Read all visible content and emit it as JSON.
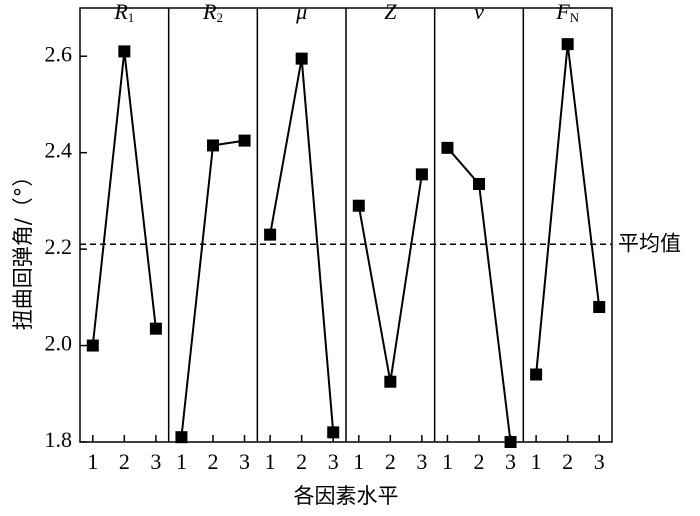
{
  "chart_data": {
    "type": "line",
    "ylabel": "扭曲回弹角/（°）",
    "xlabel": "各因素水平",
    "categories": [
      "1",
      "2",
      "3"
    ],
    "ylim": [
      1.8,
      2.7
    ],
    "yticks": [
      1.8,
      {
        "value": 2,
        "label": "2.0"
      },
      2.2,
      2.4,
      2.6
    ],
    "reference_line": {
      "value": 2.21,
      "label": "平均值"
    },
    "color": "#000000",
    "panels": [
      {
        "symbol": "R",
        "subscript": "1",
        "values": [
          2.0,
          2.61,
          2.035
        ]
      },
      {
        "symbol": "R",
        "subscript": "2",
        "values": [
          1.81,
          2.415,
          2.425
        ]
      },
      {
        "symbol": "μ",
        "values": [
          2.23,
          2.595,
          1.82
        ]
      },
      {
        "symbol": "Z",
        "values": [
          2.29,
          1.925,
          2.355
        ]
      },
      {
        "symbol": "ν",
        "values": [
          2.41,
          2.335,
          1.8
        ]
      },
      {
        "symbol": "F",
        "subscript": "N",
        "values": [
          1.94,
          2.625,
          2.08
        ]
      }
    ]
  }
}
